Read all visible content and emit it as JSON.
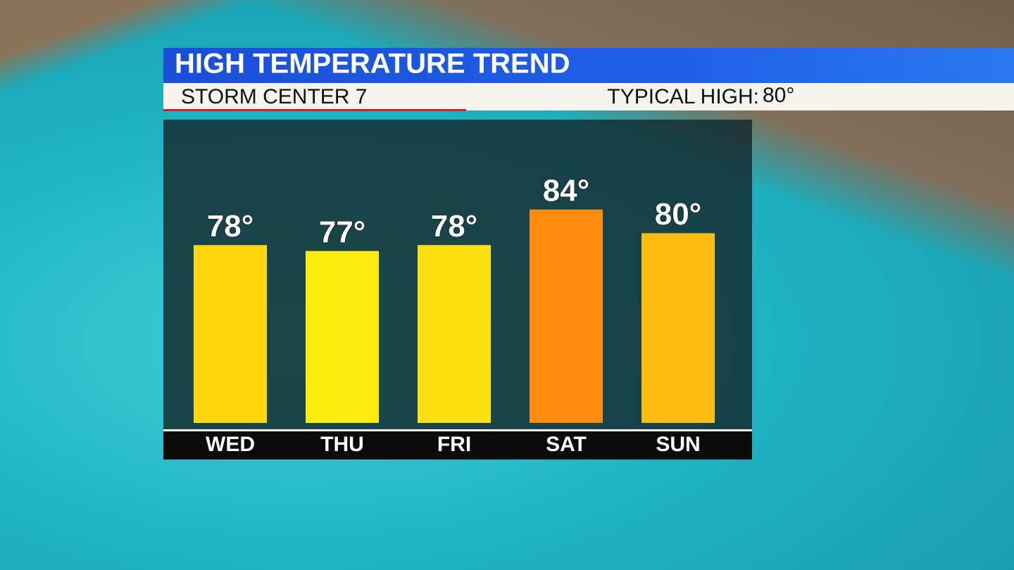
{
  "chart_data": {
    "type": "bar",
    "title": "HIGH TEMPERATURE TREND",
    "subtitle": "STORM CENTER 7",
    "annotations": [
      "TYPICAL HIGH:",
      "80°"
    ],
    "categories": [
      "WED",
      "THU",
      "FRI",
      "SAT",
      "SUN"
    ],
    "values": [
      78,
      77,
      78,
      84,
      80
    ],
    "value_labels": [
      "78°",
      "77°",
      "78°",
      "84°",
      "80°"
    ],
    "colors": [
      "#fdd80f",
      "#fdeb0c",
      "#fde010",
      "#fd8c0c",
      "#fdbc12"
    ],
    "ylim": [
      48,
      88
    ]
  }
}
